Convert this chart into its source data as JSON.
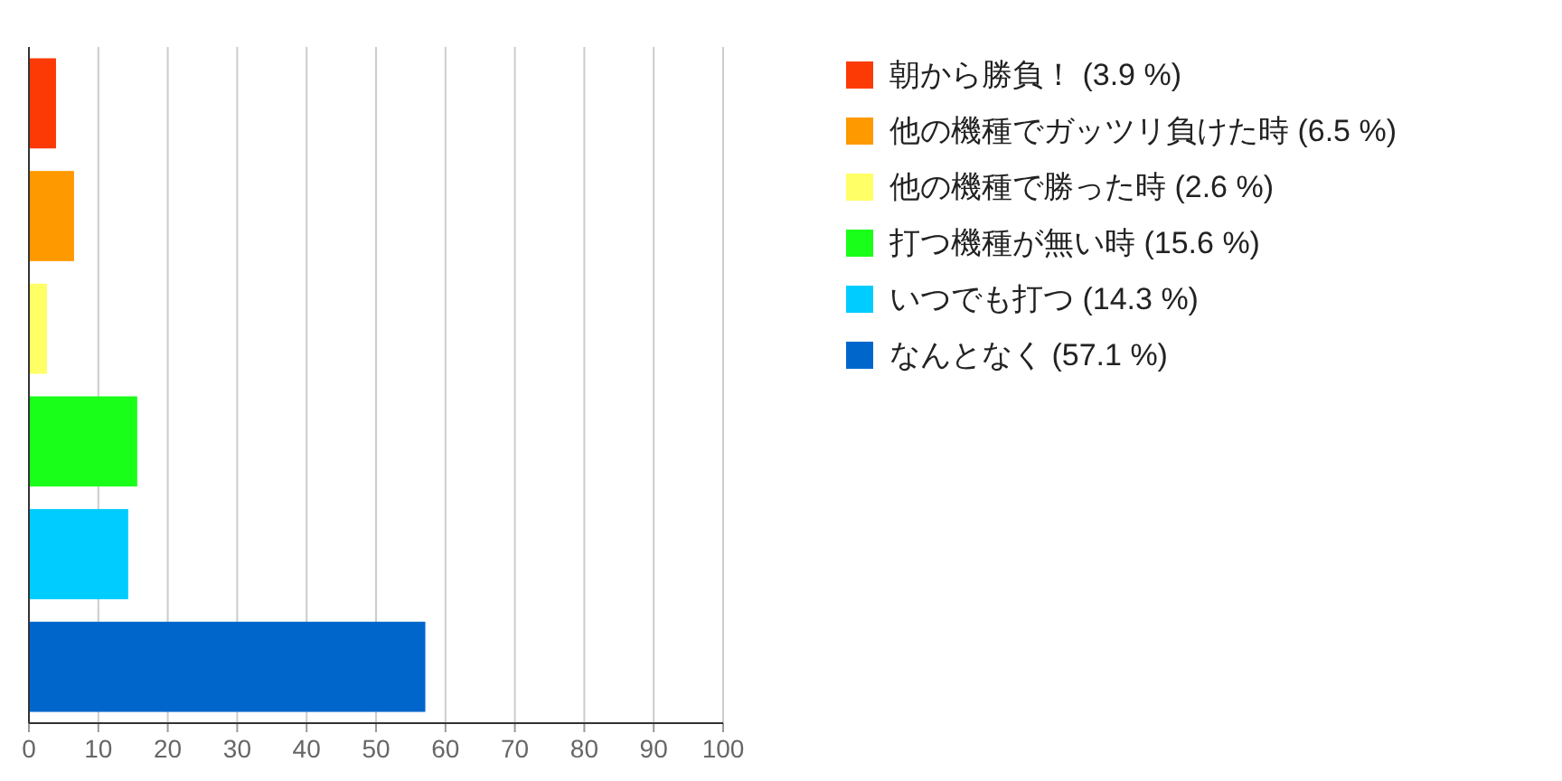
{
  "chart_data": {
    "type": "bar",
    "orientation": "horizontal",
    "categories": [
      null,
      null,
      null,
      null,
      null,
      null
    ],
    "series": [
      {
        "name": "朝から勝負！ (3.9 %)",
        "color": "#fc3a06",
        "values": [
          3.9,
          null,
          null,
          null,
          null,
          null
        ]
      },
      {
        "name": "他の機種でガッツリ負けた時 (6.5 %)",
        "color": "#ff9900",
        "values": [
          null,
          6.5,
          null,
          null,
          null,
          null
        ]
      },
      {
        "name": "他の機種で勝った時 (2.6 %)",
        "color": "#ffff66",
        "values": [
          null,
          null,
          2.6,
          null,
          null,
          null
        ]
      },
      {
        "name": "打つ機種が無い時 (15.6 %)",
        "color": "#1aff1a",
        "values": [
          null,
          null,
          null,
          15.6,
          null,
          null
        ]
      },
      {
        "name": "いつでも打つ (14.3 %)",
        "color": "#00ccff",
        "values": [
          null,
          null,
          null,
          null,
          14.3,
          null
        ]
      },
      {
        "name": "なんとなく (57.1 %)",
        "color": "#0066cc",
        "values": [
          null,
          null,
          null,
          null,
          null,
          57.1
        ]
      }
    ],
    "xlim": [
      0,
      100
    ],
    "xticks": [
      0,
      10,
      20,
      30,
      40,
      50,
      60,
      70,
      80,
      90,
      100
    ],
    "grid": "x",
    "legend": "right",
    "tick_labels": "x"
  }
}
